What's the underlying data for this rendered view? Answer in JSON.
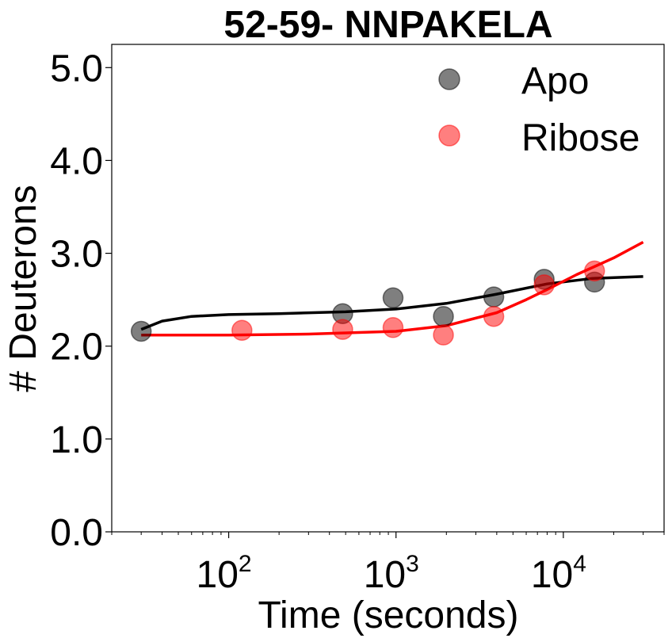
{
  "chart_data": {
    "type": "scatter",
    "title": "52-59- NNPAKELA",
    "xlabel": "Time (seconds)",
    "ylabel": "# Deuterons",
    "xscale": "log",
    "xlim": [
      20,
      40000
    ],
    "ylim": [
      0,
      5.25
    ],
    "yticks": [
      "0.0",
      "1.0",
      "2.0",
      "3.0",
      "4.0",
      "5.0"
    ],
    "xticks": [
      {
        "base": "10",
        "exp": "2"
      },
      {
        "base": "10",
        "exp": "3"
      },
      {
        "base": "10",
        "exp": "4"
      }
    ],
    "legend_position": "upper-right",
    "grid": false,
    "series": [
      {
        "name": "Apo",
        "color": "#000000",
        "points": [
          {
            "x": 30,
            "y": 2.16
          },
          {
            "x": 480,
            "y": 2.35
          },
          {
            "x": 960,
            "y": 2.52
          },
          {
            "x": 1920,
            "y": 2.32
          },
          {
            "x": 3840,
            "y": 2.53
          },
          {
            "x": 7680,
            "y": 2.72
          },
          {
            "x": 15360,
            "y": 2.69
          }
        ],
        "fit": [
          {
            "x": 30,
            "y": 2.18
          },
          {
            "x": 40,
            "y": 2.27
          },
          {
            "x": 60,
            "y": 2.32
          },
          {
            "x": 100,
            "y": 2.34
          },
          {
            "x": 200,
            "y": 2.35
          },
          {
            "x": 500,
            "y": 2.37
          },
          {
            "x": 1000,
            "y": 2.4
          },
          {
            "x": 2000,
            "y": 2.46
          },
          {
            "x": 4000,
            "y": 2.56
          },
          {
            "x": 8000,
            "y": 2.67
          },
          {
            "x": 15000,
            "y": 2.73
          },
          {
            "x": 30000,
            "y": 2.75
          }
        ]
      },
      {
        "name": "Ribose",
        "color": "#ff0000",
        "points": [
          {
            "x": 120,
            "y": 2.17
          },
          {
            "x": 480,
            "y": 2.18
          },
          {
            "x": 960,
            "y": 2.2
          },
          {
            "x": 1920,
            "y": 2.12
          },
          {
            "x": 3840,
            "y": 2.32
          },
          {
            "x": 7680,
            "y": 2.66
          },
          {
            "x": 15360,
            "y": 2.81
          }
        ],
        "fit": [
          {
            "x": 30,
            "y": 2.12
          },
          {
            "x": 100,
            "y": 2.12
          },
          {
            "x": 300,
            "y": 2.13
          },
          {
            "x": 1000,
            "y": 2.16
          },
          {
            "x": 2000,
            "y": 2.22
          },
          {
            "x": 4000,
            "y": 2.36
          },
          {
            "x": 6000,
            "y": 2.5
          },
          {
            "x": 8000,
            "y": 2.61
          },
          {
            "x": 12000,
            "y": 2.77
          },
          {
            "x": 20000,
            "y": 2.95
          },
          {
            "x": 30000,
            "y": 3.12
          }
        ]
      }
    ]
  }
}
